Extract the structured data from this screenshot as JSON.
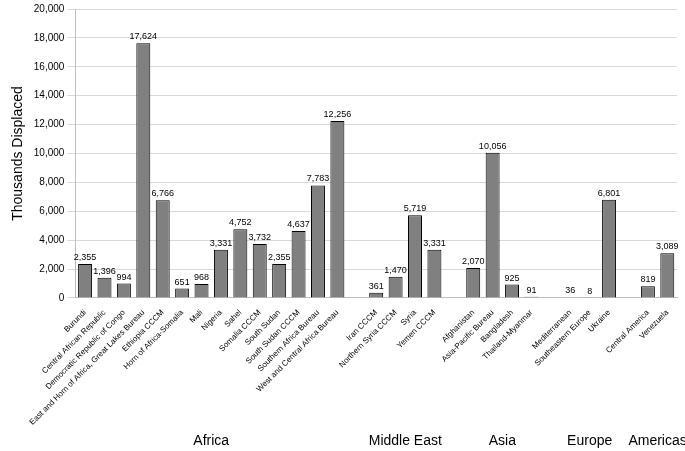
{
  "chart_data": {
    "type": "bar",
    "y_label": "Thousands Displaced",
    "categories": [
      "Burundi",
      "Central African Republic",
      "Democratic Republic of Congo",
      "East and Horn of Africa, Great Lakes Bureau",
      "Ethiopia CCCM",
      "Horn of Africa-Somalia",
      "Mali",
      "Nigeria",
      "Sahel",
      "Somalia CCCM",
      "South Sudan",
      "South Sudan CCCM",
      "Southern Africa Bureau",
      "West and Central Africa Bureau",
      null,
      "Iran CCCM",
      "Northern Syria CCCM",
      "Syria",
      "Yemen CCCM",
      null,
      "Afghanistan",
      "Asia-Pacific Bureau",
      "Bangladesh",
      "Thailand-Myanmar",
      null,
      "Mediterranean",
      "Southeastern Europe",
      "Ukraine",
      null,
      "Central America",
      "Venezuela"
    ],
    "values": [
      2355,
      1396,
      994,
      17624,
      6766,
      651,
      968,
      3331,
      4752,
      3732,
      2355,
      4637,
      7783,
      12256,
      null,
      361,
      1470,
      5719,
      3331,
      null,
      2070,
      10056,
      925,
      91,
      null,
      36,
      8,
      6801,
      null,
      819,
      3089
    ],
    "value_labels": [
      "2,355",
      "1,396",
      "994",
      "17,624",
      "6,766",
      "651",
      "968",
      "3,331",
      "4,752",
      "3,732",
      "2,355",
      "4,637",
      "7,783",
      "12,256",
      null,
      "361",
      "1,470",
      "5,719",
      "3,331",
      null,
      "2,070",
      "10,056",
      "925",
      "91",
      null,
      "36",
      "8",
      "6,801",
      null,
      "819",
      "3,089"
    ],
    "groups": [
      "Africa",
      "Middle East",
      "Asia",
      "Europe",
      "Americas"
    ],
    "color": "#808080",
    "ylim": [
      0,
      20000
    ],
    "yticks": [
      0,
      {
        "value": 2000,
        "label": "2,000"
      },
      {
        "value": 4000,
        "label": "4,000"
      },
      {
        "value": 6000,
        "label": "6,000"
      },
      {
        "value": 8000,
        "label": "8,000"
      },
      {
        "value": 10000,
        "label": "10,000"
      },
      {
        "value": 12000,
        "label": "12,000"
      },
      {
        "value": 14000,
        "label": "14,000"
      },
      {
        "value": 16000,
        "label": "16,000"
      },
      {
        "value": 18000,
        "label": "18,000"
      },
      {
        "value": 20000,
        "label": "20,000"
      }
    ],
    "grid": true,
    "data_labels": true
  }
}
